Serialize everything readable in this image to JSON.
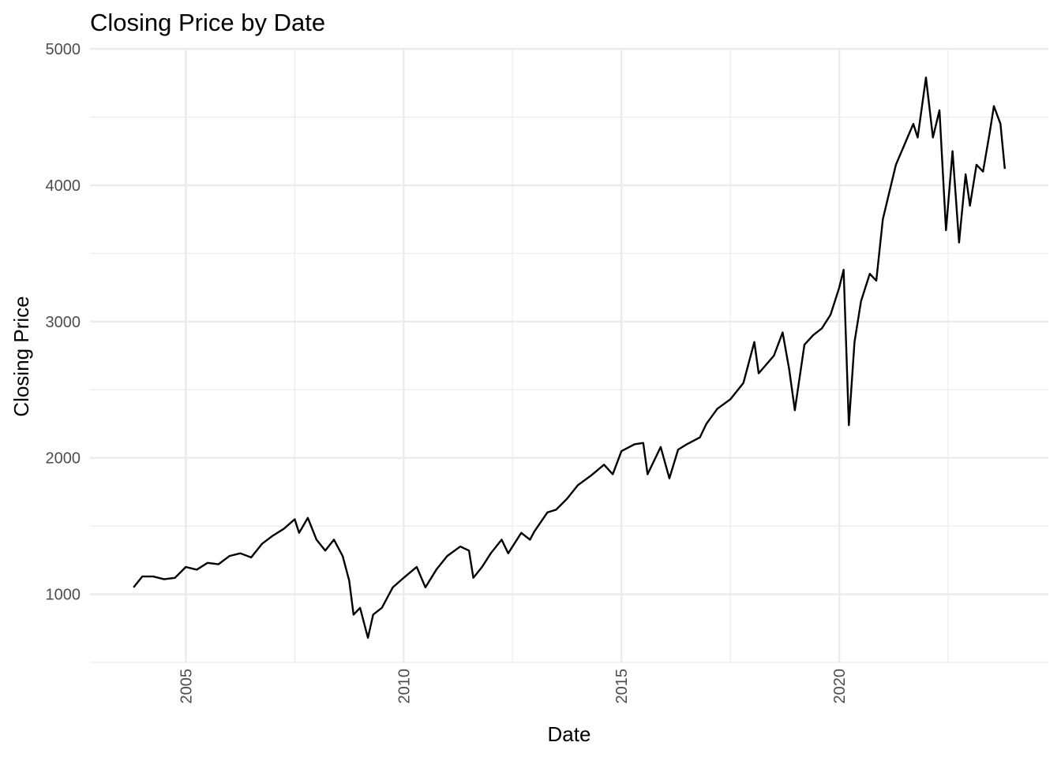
{
  "chart_data": {
    "type": "line",
    "title": "Closing Price by Date",
    "x_label": "Date",
    "y_label": "Closing Price",
    "x": [
      2003.8,
      2004.0,
      2004.25,
      2004.5,
      2004.75,
      2005.0,
      2005.25,
      2005.5,
      2005.75,
      2006.0,
      2006.25,
      2006.5,
      2006.75,
      2007.0,
      2007.25,
      2007.5,
      2007.6,
      2007.8,
      2008.0,
      2008.2,
      2008.4,
      2008.6,
      2008.75,
      2008.85,
      2009.0,
      2009.18,
      2009.3,
      2009.5,
      2009.75,
      2010.0,
      2010.3,
      2010.5,
      2010.75,
      2011.0,
      2011.3,
      2011.5,
      2011.6,
      2011.8,
      2012.0,
      2012.25,
      2012.4,
      2012.7,
      2012.9,
      2013.0,
      2013.3,
      2013.5,
      2013.75,
      2014.0,
      2014.3,
      2014.6,
      2014.8,
      2015.0,
      2015.3,
      2015.5,
      2015.6,
      2015.9,
      2016.1,
      2016.3,
      2016.5,
      2016.8,
      2016.95,
      2017.2,
      2017.5,
      2017.8,
      2018.05,
      2018.15,
      2018.5,
      2018.7,
      2018.85,
      2018.98,
      2019.2,
      2019.4,
      2019.6,
      2019.8,
      2020.0,
      2020.1,
      2020.22,
      2020.35,
      2020.5,
      2020.7,
      2020.85,
      2021.0,
      2021.3,
      2021.5,
      2021.7,
      2021.8,
      2021.99,
      2022.15,
      2022.3,
      2022.45,
      2022.6,
      2022.75,
      2022.9,
      2023.0,
      2023.15,
      2023.3,
      2023.45,
      2023.55,
      2023.7,
      2023.8
    ],
    "series": [
      {
        "name": "Closing Price",
        "color": "#000000",
        "values": [
          1050,
          1130,
          1130,
          1110,
          1120,
          1200,
          1180,
          1230,
          1220,
          1280,
          1300,
          1270,
          1370,
          1430,
          1480,
          1550,
          1450,
          1560,
          1400,
          1320,
          1400,
          1280,
          1100,
          850,
          900,
          680,
          850,
          900,
          1050,
          1120,
          1200,
          1050,
          1180,
          1280,
          1350,
          1320,
          1120,
          1200,
          1300,
          1400,
          1300,
          1450,
          1400,
          1460,
          1600,
          1620,
          1700,
          1800,
          1870,
          1950,
          1880,
          2050,
          2100,
          2110,
          1880,
          2080,
          1850,
          2060,
          2100,
          2150,
          2250,
          2360,
          2430,
          2550,
          2850,
          2620,
          2750,
          2920,
          2650,
          2350,
          2830,
          2900,
          2950,
          3050,
          3250,
          3380,
          2240,
          2850,
          3150,
          3350,
          3300,
          3750,
          4150,
          4300,
          4450,
          4350,
          4790,
          4350,
          4550,
          3670,
          4250,
          3580,
          4080,
          3850,
          4150,
          4100,
          4380,
          4580,
          4450,
          4120
        ]
      }
    ],
    "xlim": [
      2002.8,
      2024.8
    ],
    "xticks": [
      2005,
      2010,
      2015,
      2020
    ],
    "x_minor_grid": [
      2007.5,
      2012.5,
      2017.5,
      2022.5
    ],
    "ylim": [
      500,
      5000
    ],
    "yticks": [
      1000,
      2000,
      3000,
      4000,
      5000
    ],
    "y_minor_grid": [
      500,
      1500,
      2500,
      3500,
      4500
    ],
    "grid": true
  }
}
